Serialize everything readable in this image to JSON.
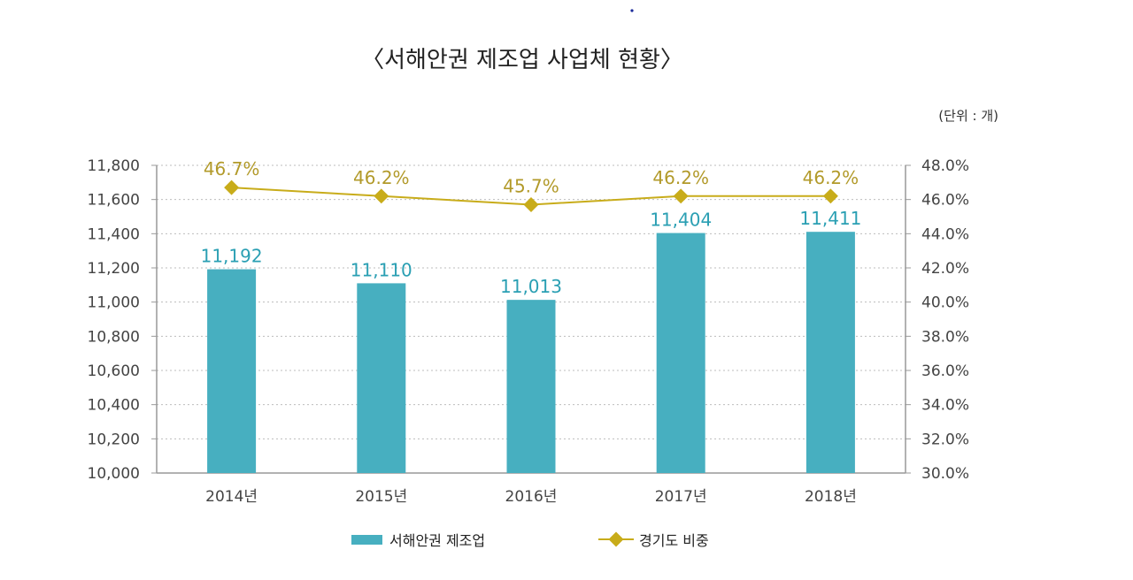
{
  "chart_data": {
    "type": "bar",
    "title": "〈서해안권 제조업 사업체 현황〉",
    "unit_note": "(단위 : 개)",
    "categories": [
      "2014년",
      "2015년",
      "2016년",
      "2017년",
      "2018년"
    ],
    "series": [
      {
        "name": "서해안권 제조업",
        "type": "bar",
        "axis": "left",
        "values": [
          11192,
          11110,
          11013,
          11404,
          11411
        ],
        "labels": [
          "11,192",
          "11,110",
          "11,013",
          "11,404",
          "11,411"
        ],
        "color": "#47afc0",
        "label_color": "#2a9fb3"
      },
      {
        "name": "경기도 비중",
        "type": "line",
        "axis": "right",
        "values": [
          46.7,
          46.2,
          45.7,
          46.2,
          46.2
        ],
        "labels": [
          "46.7%",
          "46.2%",
          "45.7%",
          "46.2%",
          "46.2%"
        ],
        "color": "#c8ac1a",
        "label_color": "#b29a2a",
        "marker": "diamond"
      }
    ],
    "y_left": {
      "lim": [
        10000,
        11800
      ],
      "ticks": [
        10000,
        10200,
        10400,
        10600,
        10800,
        11000,
        11200,
        11400,
        11600,
        11800
      ],
      "tick_labels": [
        "10,000",
        "10,200",
        "10,400",
        "10,600",
        "10,800",
        "11,000",
        "11,200",
        "11,400",
        "11,600",
        "11,800"
      ]
    },
    "y_right": {
      "lim": [
        30,
        48
      ],
      "ticks": [
        30,
        32,
        34,
        36,
        38,
        40,
        42,
        44,
        46,
        48
      ],
      "tick_labels": [
        "30.0%",
        "32.0%",
        "34.0%",
        "36.0%",
        "38.0%",
        "40.0%",
        "42.0%",
        "44.0%",
        "46.0%",
        "48.0%"
      ]
    },
    "grid": true,
    "legend_position": "bottom-center"
  }
}
